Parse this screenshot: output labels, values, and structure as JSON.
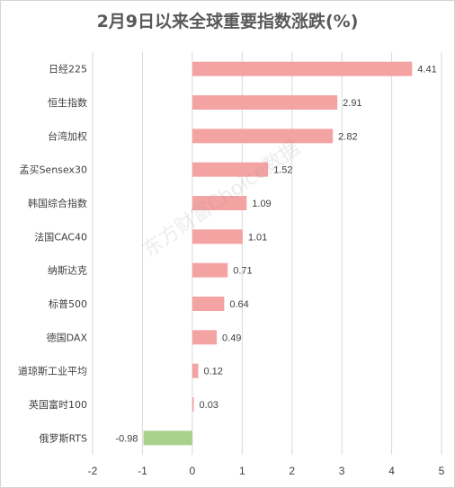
{
  "chart_data": {
    "type": "bar",
    "orientation": "horizontal",
    "title": "2月9日以来全球重要指数涨跌(%)",
    "categories": [
      "日经225",
      "恒生指数",
      "台湾加权",
      "孟买Sensex30",
      "韩国综合指数",
      "法国CAC40",
      "纳斯达克",
      "标普500",
      "德国DAX",
      "道琼斯工业平均",
      "英国富时100",
      "俄罗斯RTS"
    ],
    "values": [
      4.41,
      2.91,
      2.82,
      1.52,
      1.09,
      1.01,
      0.71,
      0.64,
      0.49,
      0.12,
      0.03,
      -0.98
    ],
    "value_labels": [
      "4.41",
      "2.91",
      "2.82",
      "1.52",
      "1.09",
      "1.01",
      "0.71",
      "0.64",
      "0.49",
      "0.12",
      "0.03",
      "-0.98"
    ],
    "xlim": [
      -2,
      5
    ],
    "xticks": [
      "-2",
      "-1",
      "0",
      "1",
      "2",
      "3",
      "4",
      "5"
    ],
    "grid": true,
    "colors": {
      "positive": "#f4a3a3",
      "negative": "#a9d18e",
      "grid": "#d9d9d9",
      "text": "#404040"
    }
  },
  "watermark": "东方财富Choice数据"
}
